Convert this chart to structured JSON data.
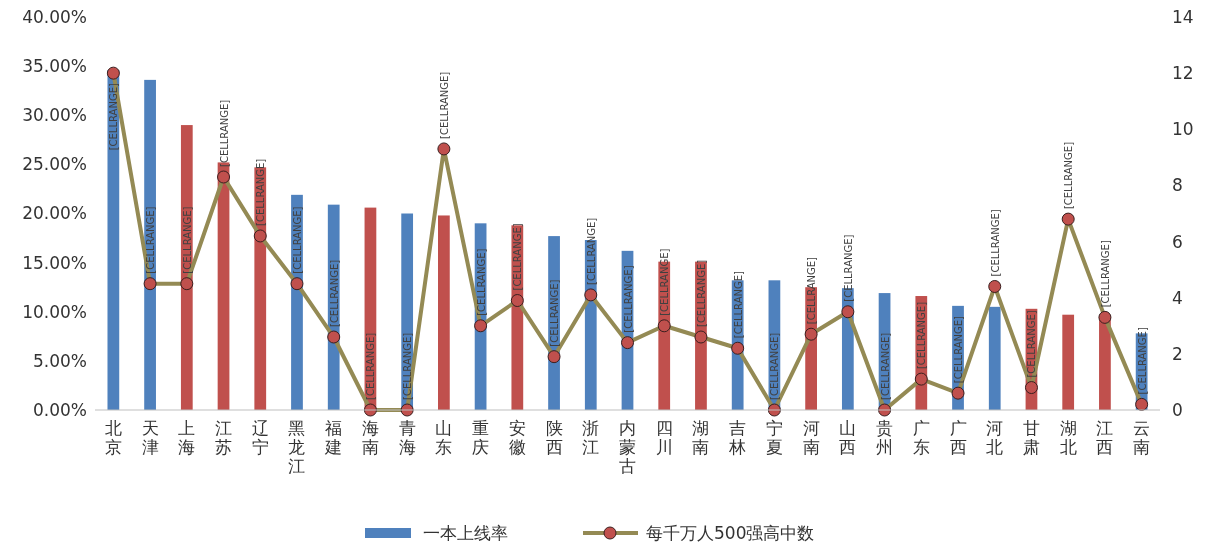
{
  "chart_data": {
    "type": "bar",
    "categories": [
      "北京",
      "天津",
      "上海",
      "江苏",
      "辽宁",
      "黑龙江",
      "福建",
      "海南",
      "青海",
      "山东",
      "重庆",
      "安徽",
      "陕西",
      "浙江",
      "内蒙古",
      "四川",
      "湖南",
      "吉林",
      "宁夏",
      "河南",
      "山西",
      "贵州",
      "广东",
      "广西",
      "河北",
      "甘肃",
      "湖北",
      "江西",
      "云南"
    ],
    "series": [
      {
        "name": "一本上线率",
        "color": "#4f81bd",
        "colors": [
          "#4f81bd",
          "#4f81bd",
          "#c0504d",
          "#c0504d",
          "#c0504d",
          "#4f81bd",
          "#4f81bd",
          "#c0504d",
          "#4f81bd",
          "#c0504d",
          "#4f81bd",
          "#c0504d",
          "#4f81bd",
          "#4f81bd",
          "#4f81bd",
          "#c0504d",
          "#c0504d",
          "#4f81bd",
          "#4f81bd",
          "#c0504d",
          "#4f81bd",
          "#4f81bd",
          "#c0504d",
          "#4f81bd",
          "#4f81bd",
          "#c0504d",
          "#c0504d",
          "#c0504d",
          "#4f81bd"
        ],
        "values": [
          34.6,
          33.6,
          29.0,
          25.2,
          24.7,
          21.9,
          20.9,
          20.6,
          20.0,
          19.8,
          19.0,
          18.8,
          17.7,
          17.3,
          16.2,
          15.1,
          15.1,
          13.2,
          13.2,
          12.5,
          12.4,
          11.9,
          11.6,
          10.6,
          10.5,
          10.3,
          9.7,
          9.4,
          7.8
        ]
      },
      {
        "name": "每千万人500强高中数",
        "type": "line",
        "axis": "y2",
        "color": "#948a54",
        "values": [
          12.0,
          4.5,
          4.5,
          8.3,
          6.2,
          4.5,
          2.6,
          0,
          0,
          9.3,
          3.0,
          3.9,
          1.9,
          4.1,
          2.4,
          3.0,
          2.6,
          2.2,
          0,
          2.7,
          3.5,
          0,
          1.1,
          0.6,
          4.4,
          0.8,
          6.8,
          3.3,
          0.2
        ],
        "value_labels": [
          "[CELLRANGE]",
          "[CELLRANGE]",
          "[CELLRANGE]",
          "[CELLRANGE]",
          "[CELLRANGE]",
          "[CELLRANGE]",
          "[CELLRANGE]",
          "[CELLRANGE]",
          "[CELLRANGE]",
          "[CELLRANGE]",
          "[CELLRANGE]",
          "[CELLRANGE]",
          "[CELLRANGE]",
          "[CELLRANGE]",
          "[CELLRANGE]",
          "[CELLRANGE]",
          "[CELLRANGE]",
          "[CELLRANGE]",
          "[CELLRANGE]",
          "[CELLRANGE]",
          "[CELLRANGE]",
          "[CELLRANGE]",
          "[CELLRANGE]",
          "[CELLRANGE]",
          "[CELLRANGE]",
          "[CELLRANGE]",
          "[CELLRANGE]",
          "[CELLRANGE]",
          "[CELLRANGE]"
        ]
      }
    ],
    "ylim": [
      0,
      40
    ],
    "yticks": [
      {
        "value": 0,
        "label": "0.00%"
      },
      {
        "value": 5,
        "label": "5.00%"
      },
      {
        "value": 10,
        "label": "10.00%"
      },
      {
        "value": 15,
        "label": "15.00%"
      },
      {
        "value": 20,
        "label": "20.00%"
      },
      {
        "value": 25,
        "label": "25.00%"
      },
      {
        "value": 30,
        "label": "30.00%"
      },
      {
        "value": 35,
        "label": "35.00%"
      },
      {
        "value": 40,
        "label": "40.00%"
      }
    ],
    "y2lim": [
      0,
      14
    ],
    "y2ticks": [
      0,
      2,
      4,
      6,
      8,
      10,
      12,
      14
    ],
    "marker": "circle",
    "legend": "bottom",
    "grid": false
  }
}
